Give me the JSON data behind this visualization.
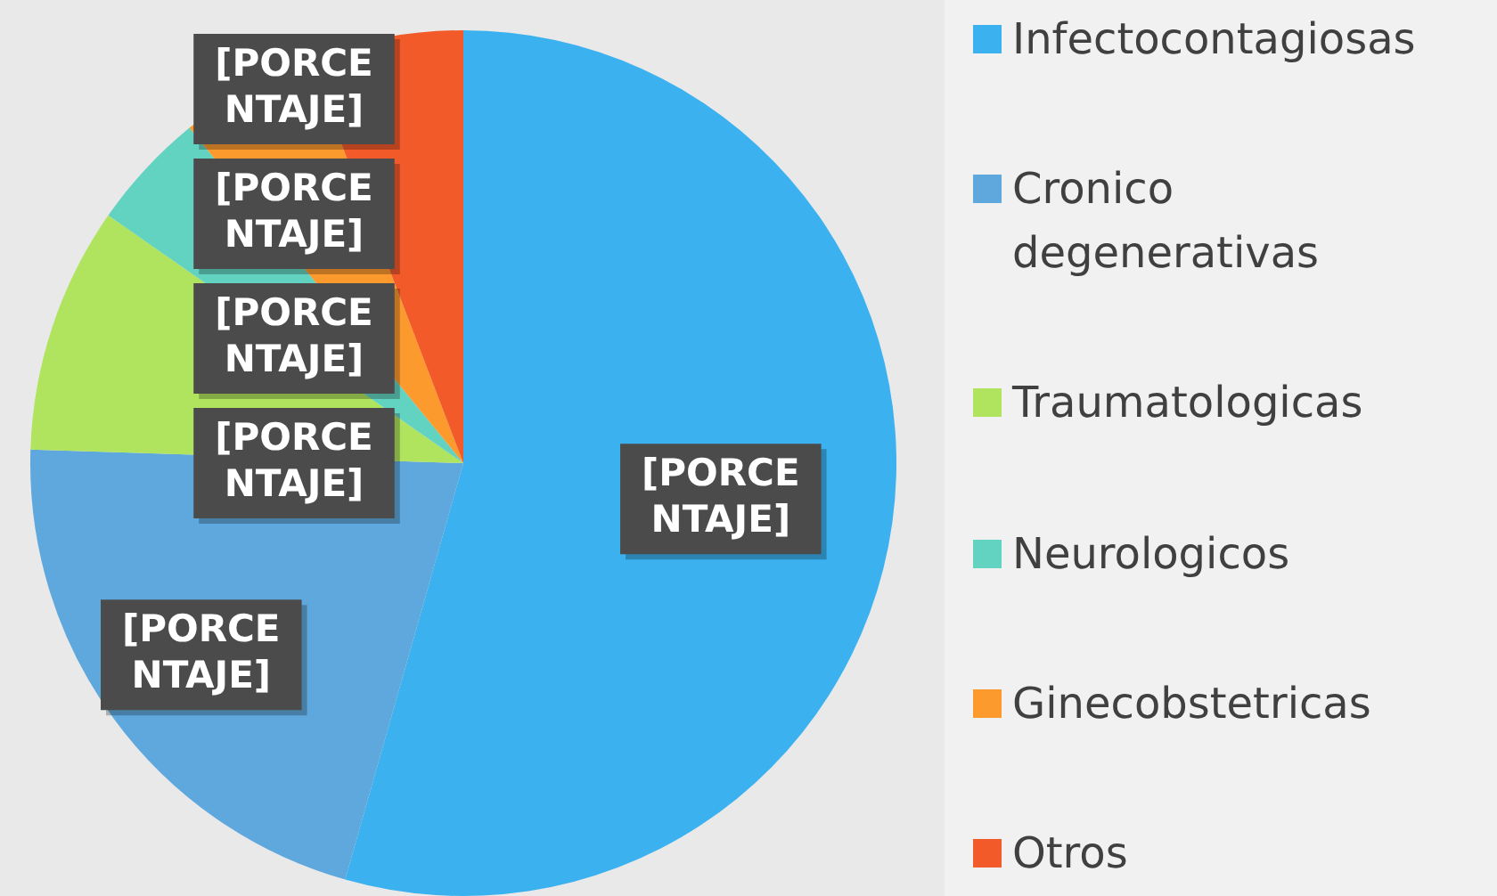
{
  "chart_data": {
    "type": "pie",
    "categories": [
      "Infectocontagiosas",
      "Cronico degenerativas",
      "Traumatologicas",
      "Neurologicos",
      "Ginecobstetricas",
      "Otros"
    ],
    "values": [
      54.4,
      21.1,
      9.2,
      4.4,
      5.1,
      5.8
    ],
    "colors": [
      "#3bb1ef",
      "#5fa8dd",
      "#b0e35e",
      "#62d3c0",
      "#fd9a2d",
      "#f25a2a"
    ],
    "value_labels": [
      "[PORCENTAJE]",
      "[PORCENTAJE]",
      "[PORCENTAJE]",
      "[PORCENTAJE]",
      "[PORCENTAJE]",
      "[PORCENTAJE]"
    ],
    "legend": "right"
  }
}
